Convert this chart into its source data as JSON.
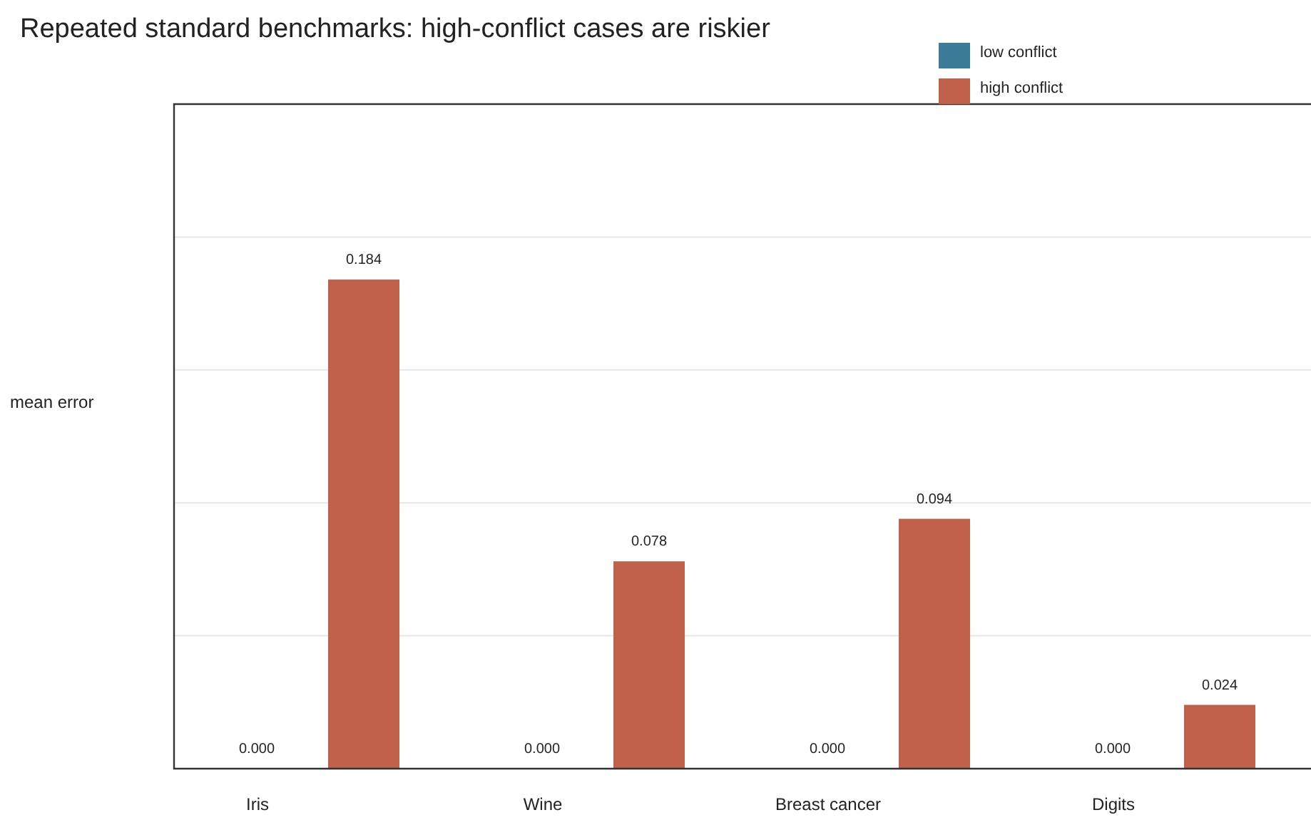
{
  "chart_data": {
    "type": "bar",
    "title": "Repeated standard benchmarks: high-conflict cases are riskier",
    "ylabel": "mean error",
    "categories": [
      "Iris",
      "Wine",
      "Breast cancer",
      "Digits"
    ],
    "series": [
      {
        "name": "low conflict",
        "color": "#3b7d98",
        "values": [
          0,
          0,
          0,
          0
        ],
        "value_labels": [
          "0.000",
          "0.000",
          "0.000",
          "0.000"
        ]
      },
      {
        "name": "high conflict",
        "color": "#c0624b",
        "values": [
          0.184,
          0.078,
          0.094,
          0.024
        ],
        "value_labels": [
          "0.184",
          "0.078",
          "0.094",
          "0.024"
        ]
      }
    ],
    "ylim": [
      0,
      0.25
    ],
    "yticks": [
      {
        "value": 0,
        "label": null
      },
      {
        "value": 0.05,
        "label": null
      },
      {
        "value": 0.1,
        "label": null
      },
      {
        "value": 0.15,
        "label": null
      },
      {
        "value": 0.2,
        "label": null
      },
      {
        "value": 0.25,
        "label": null
      }
    ],
    "tick_labels": "x",
    "grid": "y",
    "legend": "top right"
  }
}
